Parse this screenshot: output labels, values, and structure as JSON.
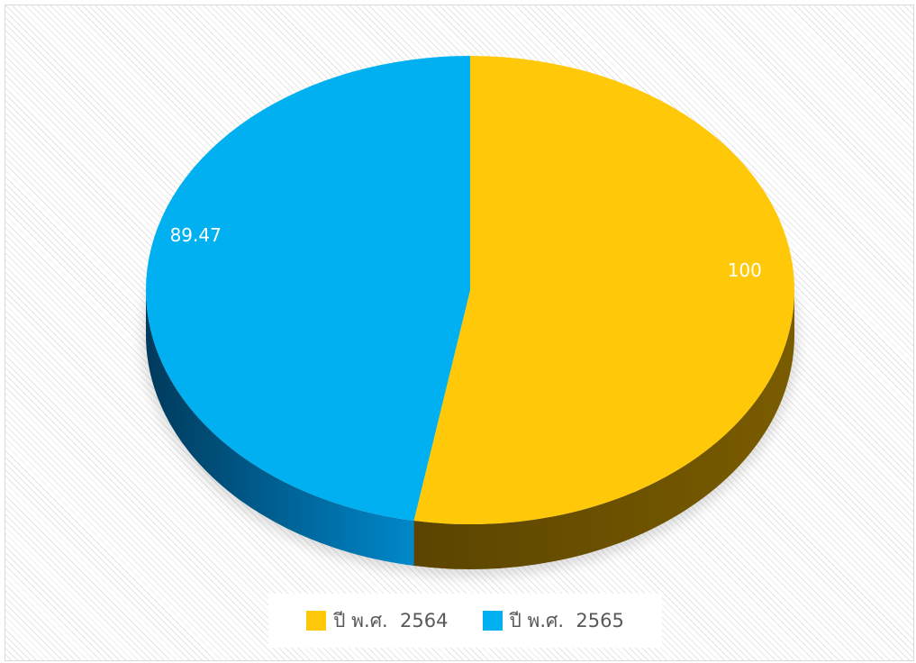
{
  "chart_data": {
    "type": "pie",
    "style": "3d",
    "categories": [
      "ปี พ.ศ.  2564",
      "ปี พ.ศ.  2565"
    ],
    "values": [
      100,
      89.47
    ],
    "data_labels": [
      "100",
      "89.47"
    ],
    "colors": [
      "#FFC90A",
      "#00B0F0"
    ],
    "side_colors": [
      [
        "#7A5C00",
        "#5A4400"
      ],
      [
        "#0088CA",
        "#003A5C"
      ]
    ],
    "legend": "bottom",
    "direction": "clockwise"
  }
}
